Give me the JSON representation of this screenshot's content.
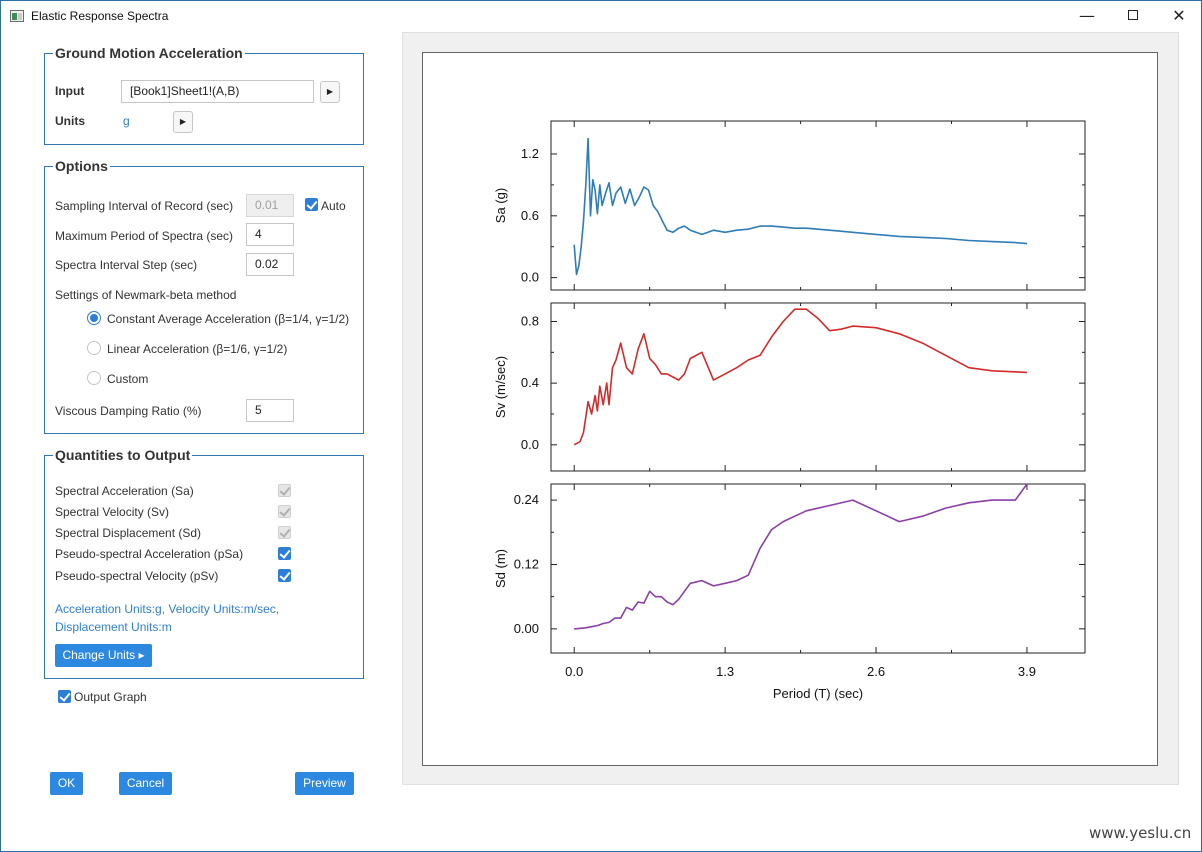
{
  "window": {
    "title": "Elastic Response Spectra",
    "minimize": "—",
    "close": "✕"
  },
  "ground_motion": {
    "title": "Ground Motion Acceleration",
    "input_label": "Input",
    "input_value": "[Book1]Sheet1!(A,B)",
    "units_label": "Units",
    "units_value": "g"
  },
  "options": {
    "title": "Options",
    "sampling_label": "Sampling Interval of Record (sec)",
    "sampling_value": "0.01",
    "auto_label": "Auto",
    "auto_checked": true,
    "max_period_label": "Maximum Period of Spectra (sec)",
    "max_period_value": "4",
    "interval_step_label": "Spectra Interval Step (sec)",
    "interval_step_value": "0.02",
    "newmark_label": "Settings of Newmark-beta method",
    "methods": [
      {
        "label": "Constant Average Acceleration (β=1/4, γ=1/2)",
        "selected": true
      },
      {
        "label": "Linear Acceleration (β=1/6, γ=1/2)",
        "selected": false
      },
      {
        "label": "Custom",
        "selected": false
      }
    ],
    "damping_label": "Viscous Damping Ratio (%)",
    "damping_value": "5"
  },
  "quantities": {
    "title": "Quantities to Output",
    "items": [
      {
        "label": "Spectral Acceleration (Sa)",
        "checked": true,
        "disabled": true
      },
      {
        "label": "Spectral Velocity (Sv)",
        "checked": true,
        "disabled": true
      },
      {
        "label": "Spectral Displacement (Sd)",
        "checked": true,
        "disabled": true
      },
      {
        "label": "Pseudo-spectral Acceleration (pSa)",
        "checked": true,
        "disabled": false
      },
      {
        "label": "Pseudo-spectral Velocity (pSv)",
        "checked": true,
        "disabled": false
      }
    ],
    "units_line1": "Acceleration Units:g, Velocity Units:m/sec,",
    "units_line2": "Displacement Units:m",
    "change_units_label": "Change Units ▸"
  },
  "output_graph": {
    "label": "Output Graph",
    "checked": true
  },
  "buttons": {
    "ok": "OK",
    "cancel": "Cancel",
    "preview": "Preview"
  },
  "watermark": "www.yeslu.cn",
  "chart_data": {
    "type": "line",
    "xlabel": "Period (T) (sec)",
    "xlim": [
      -0.2,
      4.4
    ],
    "xticks": [
      "0.0",
      "1.3",
      "2.6",
      "3.9"
    ],
    "xtick_values": [
      0.0,
      1.3,
      2.6,
      3.9
    ],
    "panels": [
      {
        "ylabel": "Sa (g)",
        "color": "#2e7cb8",
        "ylim": [
          -0.12,
          1.52
        ],
        "yticks": [
          "0.0",
          "0.6",
          "1.2"
        ],
        "ytick_values": [
          0.0,
          0.6,
          1.2
        ],
        "x": [
          0.0,
          0.02,
          0.04,
          0.06,
          0.08,
          0.1,
          0.12,
          0.14,
          0.16,
          0.18,
          0.2,
          0.22,
          0.24,
          0.27,
          0.3,
          0.33,
          0.36,
          0.4,
          0.44,
          0.48,
          0.52,
          0.56,
          0.6,
          0.64,
          0.68,
          0.72,
          0.76,
          0.8,
          0.85,
          0.9,
          0.95,
          1.0,
          1.1,
          1.2,
          1.3,
          1.4,
          1.5,
          1.6,
          1.7,
          1.8,
          1.9,
          2.0,
          2.2,
          2.4,
          2.6,
          2.8,
          3.0,
          3.2,
          3.4,
          3.6,
          3.8,
          3.9
        ],
        "y": [
          0.32,
          0.03,
          0.12,
          0.3,
          0.55,
          0.9,
          1.35,
          0.6,
          0.95,
          0.85,
          0.62,
          0.9,
          0.7,
          0.82,
          0.92,
          0.7,
          0.82,
          0.88,
          0.72,
          0.86,
          0.7,
          0.78,
          0.88,
          0.85,
          0.7,
          0.64,
          0.55,
          0.46,
          0.44,
          0.48,
          0.5,
          0.46,
          0.42,
          0.46,
          0.44,
          0.46,
          0.47,
          0.5,
          0.5,
          0.49,
          0.48,
          0.48,
          0.46,
          0.44,
          0.42,
          0.4,
          0.39,
          0.38,
          0.36,
          0.35,
          0.34,
          0.33
        ]
      },
      {
        "ylabel": "Sv (m/sec)",
        "color": "#d42a2a",
        "ylim": [
          -0.17,
          0.92
        ],
        "yticks": [
          "0.0",
          "0.4",
          "0.8"
        ],
        "ytick_values": [
          0.0,
          0.4,
          0.8
        ],
        "x": [
          0.0,
          0.05,
          0.08,
          0.12,
          0.15,
          0.18,
          0.2,
          0.22,
          0.25,
          0.28,
          0.3,
          0.33,
          0.36,
          0.4,
          0.45,
          0.5,
          0.55,
          0.6,
          0.65,
          0.7,
          0.75,
          0.8,
          0.85,
          0.9,
          0.95,
          1.0,
          1.1,
          1.2,
          1.3,
          1.4,
          1.5,
          1.6,
          1.7,
          1.8,
          1.9,
          2.0,
          2.1,
          2.2,
          2.3,
          2.4,
          2.6,
          2.8,
          3.0,
          3.2,
          3.4,
          3.6,
          3.9
        ],
        "y": [
          0.0,
          0.02,
          0.08,
          0.28,
          0.2,
          0.32,
          0.22,
          0.38,
          0.26,
          0.4,
          0.26,
          0.5,
          0.55,
          0.66,
          0.5,
          0.46,
          0.62,
          0.72,
          0.56,
          0.52,
          0.46,
          0.46,
          0.44,
          0.42,
          0.46,
          0.56,
          0.6,
          0.42,
          0.46,
          0.5,
          0.55,
          0.58,
          0.7,
          0.8,
          0.88,
          0.88,
          0.82,
          0.74,
          0.75,
          0.77,
          0.76,
          0.72,
          0.66,
          0.58,
          0.5,
          0.48,
          0.47
        ]
      },
      {
        "ylabel": "Sd (m)",
        "color": "#8b3fa6",
        "ylim": [
          -0.045,
          0.27
        ],
        "yticks": [
          "0.00",
          "0.12",
          "0.24"
        ],
        "ytick_values": [
          0.0,
          0.12,
          0.24
        ],
        "x": [
          0.0,
          0.1,
          0.15,
          0.2,
          0.25,
          0.3,
          0.35,
          0.4,
          0.45,
          0.5,
          0.55,
          0.6,
          0.65,
          0.7,
          0.75,
          0.8,
          0.85,
          0.9,
          1.0,
          1.1,
          1.2,
          1.3,
          1.4,
          1.5,
          1.6,
          1.7,
          1.8,
          1.9,
          2.0,
          2.2,
          2.4,
          2.6,
          2.8,
          3.0,
          3.2,
          3.4,
          3.6,
          3.8,
          3.9
        ],
        "y": [
          0.0,
          0.002,
          0.004,
          0.006,
          0.01,
          0.012,
          0.02,
          0.02,
          0.04,
          0.035,
          0.05,
          0.048,
          0.07,
          0.06,
          0.06,
          0.05,
          0.045,
          0.055,
          0.085,
          0.09,
          0.08,
          0.085,
          0.09,
          0.1,
          0.15,
          0.185,
          0.2,
          0.21,
          0.22,
          0.23,
          0.24,
          0.22,
          0.2,
          0.21,
          0.225,
          0.235,
          0.24,
          0.24,
          0.27
        ]
      }
    ]
  }
}
